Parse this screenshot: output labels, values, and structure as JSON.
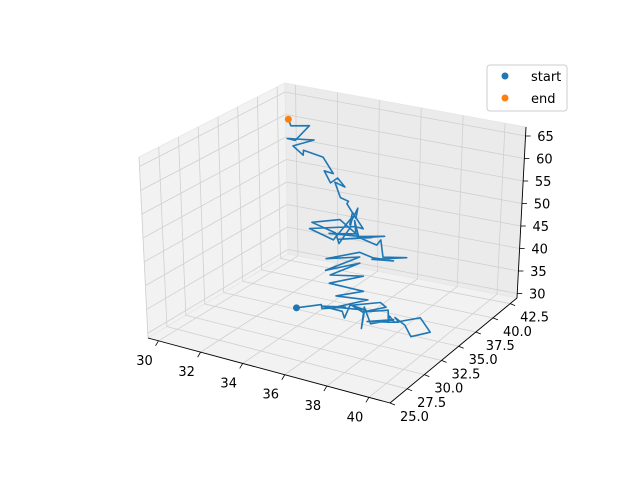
{
  "chart_data": {
    "type": "line",
    "projection": "3d",
    "grid": true,
    "legend_position": "top-right",
    "xlim": [
      29.5,
      41
    ],
    "ylim": [
      25,
      43.5
    ],
    "zlim": [
      29,
      67
    ],
    "x_ticks": [
      "30",
      "32",
      "34",
      "36",
      "38",
      "40"
    ],
    "y_ticks": [
      "25.0",
      "27.5",
      "30.0",
      "32.5",
      "35.0",
      "37.5",
      "40.0",
      "42.5"
    ],
    "z_ticks": [
      "30",
      "35",
      "40",
      "45",
      "50",
      "55",
      "60",
      "65"
    ],
    "colors": {
      "trajectory": "#1f77b4",
      "start": "#1f77b4",
      "end": "#ff7f0e"
    },
    "legend": [
      {
        "label": "start",
        "color": "#1f77b4"
      },
      {
        "label": "end",
        "color": "#ff7f0e"
      }
    ],
    "trajectory": {
      "x": [
        33.5,
        34.1,
        34.6,
        35.0,
        34.4,
        35.3,
        35.9,
        35.2,
        36.3,
        36.8,
        36.1,
        37.0,
        37.5,
        36.9,
        37.8,
        38.2,
        37.5,
        38.4,
        39.0,
        39.6,
        38.7,
        38.1,
        37.4,
        38.0,
        37.2,
        36.5,
        37.3,
        36.6,
        35.8,
        36.4,
        35.5,
        36.1,
        35.0,
        35.6,
        34.5,
        35.2,
        34.0,
        34.7,
        33.6,
        34.3,
        33.3,
        34.0,
        35.2,
        36.0,
        35.4,
        36.5,
        35.8,
        34.9,
        35.7,
        34.6,
        35.3,
        34.2,
        35.0,
        33.6,
        34.4,
        33.9,
        34.7,
        33.4,
        32.4,
        34.2,
        34.8,
        34.5,
        33.8,
        34.6,
        33.2,
        34.9,
        35.5,
        34.3,
        35.0,
        34.7,
        35.4,
        34.5,
        34.9,
        34.8,
        34.0,
        34.8,
        34.2,
        34.4,
        33.6,
        34.5,
        33.4,
        32.4,
        32.9,
        32.2,
        32.8,
        32.0,
        32.6,
        32.4,
        32.0,
        31.7
      ],
      "y": [
        33.8,
        35.5,
        34.2,
        36.3,
        34.8,
        35.0,
        33.6,
        36.4,
        35.2,
        33.4,
        35.8,
        34.1,
        35.9,
        33.9,
        35.3,
        34.6,
        36.1,
        34.9,
        34.0,
        35.0,
        36.2,
        34.3,
        35.6,
        33.7,
        36.0,
        34.5,
        35.4,
        36.6,
        34.8,
        35.2,
        33.5,
        36.3,
        35.0,
        37.1,
        35.5,
        38.2,
        37.0,
        39.1,
        37.5,
        40.2,
        38.4,
        41.0,
        39.5,
        40.1,
        38.8,
        40.5,
        39.2,
        41.4,
        38.6,
        39.0,
        40.8,
        37.6,
        39.9,
        38.0,
        39.4,
        40.6,
        38.9,
        40.0,
        39.0,
        37.2,
        36.0,
        38.3,
        40.6,
        35.8,
        36.5,
        38.0,
        37.3,
        39.2,
        36.9,
        38.8,
        36.6,
        37.9,
        37.0,
        36.2,
        37.7,
        36.8,
        37.5,
        36.0,
        37.4,
        36.1,
        37.8,
        38.0,
        36.6,
        37.2,
        38.3,
        37.0,
        36.4,
        38.8,
        37.5,
        38.0
      ],
      "z": [
        31,
        30.5,
        31.5,
        30,
        31.2,
        30.8,
        31.5,
        30.6,
        31.2,
        30.4,
        31.6,
        30.8,
        30.2,
        31.4,
        30.6,
        31.8,
        30.4,
        31,
        30.2,
        30.6,
        31.4,
        32,
        31.2,
        32.6,
        31.8,
        32.4,
        33.2,
        32.2,
        32.8,
        31.9,
        33.5,
        32.6,
        33.8,
        33.1,
        35.5,
        34.8,
        35.2,
        36.2,
        35.3,
        36,
        36.6,
        35.9,
        37.4,
        36.8,
        38,
        37.5,
        38.4,
        39,
        41.6,
        42,
        40.8,
        42.5,
        41.2,
        42.8,
        42,
        43.2,
        42.4,
        43.6,
        43.1,
        44.3,
        43.8,
        44.5,
        44,
        44.6,
        45,
        45.5,
        46.3,
        46.8,
        47.2,
        48.5,
        49.2,
        50.2,
        52,
        53.5,
        54.6,
        55.2,
        55.9,
        56.5,
        57,
        58.5,
        59.4,
        59.8,
        60.5,
        61.3,
        62.1,
        62.9,
        63.6,
        64.4,
        65.2,
        65.9
      ]
    },
    "start": {
      "x": 33.5,
      "y": 33.8,
      "z": 31
    },
    "end": {
      "x": 31.7,
      "y": 38.0,
      "z": 65.9
    }
  }
}
